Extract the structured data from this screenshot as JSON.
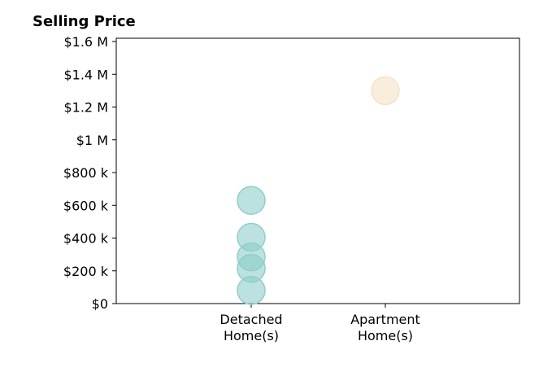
{
  "chart_data": {
    "type": "scatter",
    "title": "Selling Price",
    "xlabel": "",
    "ylabel": "",
    "categories": [
      "Detached\nHome(s)",
      "Apartment\nHome(s)"
    ],
    "ylim": [
      0,
      1620000
    ],
    "yticks": [
      0,
      200000,
      400000,
      600000,
      800000,
      1000000,
      1200000,
      1400000,
      1600000
    ],
    "ytick_labels": [
      "$0",
      "$200 k",
      "$400 k",
      "$600 k",
      "$800 k",
      "$1 M",
      "$1.2 M",
      "$1.4 M",
      "$1.6 M"
    ],
    "grid": false,
    "series": [
      {
        "category": "Detached\nHome(s)",
        "color": "#8ecfc9",
        "values": [
          630000,
          405000,
          285000,
          215000,
          80000
        ]
      },
      {
        "category": "Apartment\nHome(s)",
        "color": "#f5e3c3",
        "values": [
          1300000
        ]
      }
    ]
  }
}
